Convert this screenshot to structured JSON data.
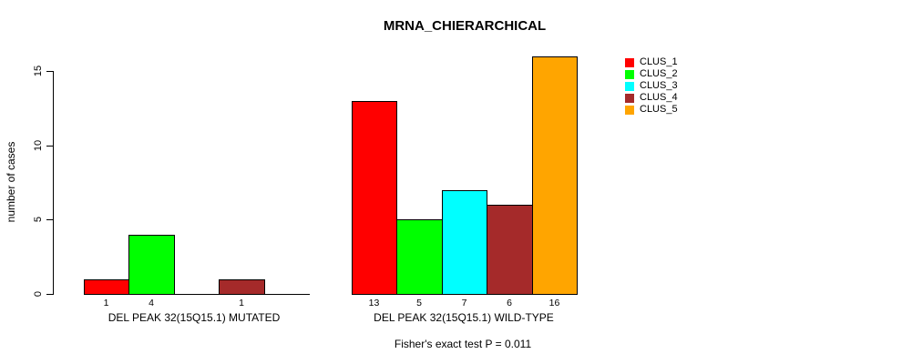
{
  "chart_data": {
    "type": "bar",
    "title": "MRNA_CHIERARCHICAL",
    "ylabel": "number of cases",
    "xlabel": "",
    "ylim": [
      0,
      16
    ],
    "yticks": [
      0,
      5,
      10,
      15
    ],
    "grid": false,
    "legend_position": "top-right",
    "background": "#ffffff",
    "axis_color": "#000000",
    "categories": [
      "DEL PEAK 32(15Q15.1) MUTATED",
      "DEL PEAK 32(15Q15.1) WILD-TYPE"
    ],
    "series": [
      {
        "name": "CLUS_1",
        "color": "#ff0000",
        "values": [
          1,
          13
        ]
      },
      {
        "name": "CLUS_2",
        "color": "#00ff00",
        "values": [
          4,
          5
        ]
      },
      {
        "name": "CLUS_3",
        "color": "#00ffff",
        "values": [
          0,
          7
        ]
      },
      {
        "name": "CLUS_4",
        "color": "#a52a2a",
        "values": [
          1,
          6
        ]
      },
      {
        "name": "CLUS_5",
        "color": "#ffa500",
        "values": [
          0,
          16
        ]
      }
    ],
    "bar_value_labels": [
      [
        "1",
        "4",
        "",
        "1",
        ""
      ],
      [
        "13",
        "5",
        "7",
        "6",
        "16"
      ]
    ],
    "annotation": "Fisher's exact test P = 0.011"
  }
}
